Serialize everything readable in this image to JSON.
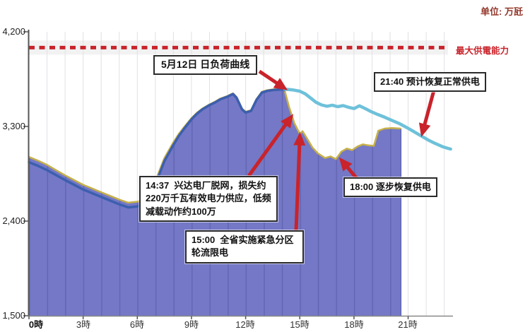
{
  "unit_label": "单位: 万瓩",
  "colors": {
    "area_fill": "#7478c6",
    "area_stripe": "#6367b3",
    "area_edge": "#c6b14a",
    "actual_line": "#3c5fae",
    "projected_line": "#6ec1da",
    "alert_red": "#c9232b",
    "axis": "#555555",
    "grid": "#e1e1e6"
  },
  "chart_data": {
    "type": "area",
    "unit": "万瓩",
    "x_axis": {
      "ticks": [
        {
          "label": "0時",
          "hour": 0,
          "bold": true
        },
        {
          "label": "3時",
          "hour": 3
        },
        {
          "label": "6時",
          "hour": 6
        },
        {
          "label": "9時",
          "hour": 9
        },
        {
          "label": "12時",
          "hour": 12
        },
        {
          "label": "15時",
          "hour": 15
        },
        {
          "label": "18時",
          "hour": 18
        },
        {
          "label": "21時",
          "hour": 21
        }
      ]
    },
    "y_axis": {
      "min": 1500,
      "max": 4200,
      "ticks": [
        {
          "label": "4,200",
          "value": 4200
        },
        {
          "label": "3,300",
          "value": 3300
        },
        {
          "label": "2,400",
          "value": 2400
        },
        {
          "label": "1,500",
          "value": 1500
        }
      ]
    },
    "max_supply_capacity": {
      "value": 4050,
      "label": "最大供電能力"
    },
    "series": [
      {
        "name": "supplied-load-area",
        "type": "area",
        "points": [
          [
            0,
            3010
          ],
          [
            0.5,
            2975
          ],
          [
            1,
            2935
          ],
          [
            1.5,
            2885
          ],
          [
            2,
            2835
          ],
          [
            2.5,
            2790
          ],
          [
            3,
            2745
          ],
          [
            3.5,
            2710
          ],
          [
            4,
            2675
          ],
          [
            4.5,
            2640
          ],
          [
            5,
            2605
          ],
          [
            5.5,
            2575
          ],
          [
            6,
            2585
          ],
          [
            6.4,
            2605
          ],
          [
            6.7,
            2650
          ],
          [
            7,
            2780
          ],
          [
            7.5,
            3000
          ],
          [
            8,
            3150
          ],
          [
            8.3,
            3230
          ],
          [
            8.6,
            3295
          ],
          [
            9,
            3380
          ],
          [
            9.3,
            3430
          ],
          [
            9.6,
            3470
          ],
          [
            10,
            3510
          ],
          [
            10.3,
            3535
          ],
          [
            10.6,
            3565
          ],
          [
            11,
            3590
          ],
          [
            11.3,
            3615
          ],
          [
            11.5,
            3580
          ],
          [
            11.8,
            3470
          ],
          [
            12,
            3440
          ],
          [
            12.3,
            3455
          ],
          [
            12.6,
            3560
          ],
          [
            12.9,
            3630
          ],
          [
            13.2,
            3645
          ],
          [
            13.6,
            3655
          ],
          [
            14,
            3660
          ],
          [
            14.15,
            3650
          ],
          [
            14.4,
            3490
          ],
          [
            14.7,
            3330
          ],
          [
            15,
            3230
          ],
          [
            15.15,
            3255
          ],
          [
            15.35,
            3200
          ],
          [
            15.7,
            3100
          ],
          [
            16,
            3045
          ],
          [
            16.4,
            3000
          ],
          [
            16.7,
            3015
          ],
          [
            17,
            2990
          ],
          [
            17.3,
            3060
          ],
          [
            17.6,
            3090
          ],
          [
            17.9,
            3075
          ],
          [
            18.2,
            3110
          ],
          [
            18.5,
            3130
          ],
          [
            18.8,
            3120
          ],
          [
            19.1,
            3115
          ],
          [
            19.35,
            3260
          ],
          [
            19.7,
            3280
          ],
          [
            20.1,
            3285
          ],
          [
            20.6,
            3280
          ]
        ]
      },
      {
        "name": "actual-load-line",
        "type": "line",
        "points": [
          [
            0,
            2960
          ],
          [
            0.5,
            2925
          ],
          [
            1,
            2885
          ],
          [
            1.5,
            2838
          ],
          [
            2,
            2790
          ],
          [
            2.5,
            2745
          ],
          [
            3,
            2700
          ],
          [
            3.5,
            2665
          ],
          [
            4,
            2630
          ],
          [
            4.5,
            2595
          ],
          [
            5,
            2560
          ],
          [
            5.5,
            2530
          ],
          [
            6,
            2540
          ],
          [
            6.4,
            2560
          ],
          [
            6.7,
            2610
          ],
          [
            7,
            2745
          ],
          [
            7.5,
            2970
          ],
          [
            8,
            3125
          ],
          [
            8.3,
            3210
          ],
          [
            8.6,
            3280
          ],
          [
            9,
            3368
          ],
          [
            9.3,
            3420
          ],
          [
            9.6,
            3462
          ],
          [
            10,
            3503
          ],
          [
            10.3,
            3528
          ],
          [
            10.6,
            3558
          ],
          [
            11,
            3584
          ],
          [
            11.3,
            3608
          ],
          [
            11.5,
            3572
          ],
          [
            11.8,
            3462
          ],
          [
            12,
            3432
          ],
          [
            12.3,
            3448
          ],
          [
            12.6,
            3552
          ],
          [
            12.9,
            3622
          ],
          [
            13.2,
            3638
          ],
          [
            13.6,
            3648
          ],
          [
            14,
            3652
          ],
          [
            14.15,
            3645
          ]
        ]
      },
      {
        "name": "projected-load-line",
        "type": "line",
        "points": [
          [
            14.15,
            3655
          ],
          [
            14.6,
            3648
          ],
          [
            15,
            3635
          ],
          [
            15.3,
            3610
          ],
          [
            15.6,
            3570
          ],
          [
            15.9,
            3530
          ],
          [
            16.2,
            3505
          ],
          [
            16.5,
            3492
          ],
          [
            16.8,
            3502
          ],
          [
            17.1,
            3488
          ],
          [
            17.4,
            3498
          ],
          [
            17.7,
            3482
          ],
          [
            18,
            3470
          ],
          [
            18.3,
            3496
          ],
          [
            18.6,
            3472
          ],
          [
            18.9,
            3445
          ],
          [
            19.3,
            3415
          ],
          [
            19.7,
            3388
          ],
          [
            20.1,
            3358
          ],
          [
            20.5,
            3328
          ],
          [
            20.9,
            3292
          ],
          [
            21.3,
            3252
          ],
          [
            21.7,
            3212
          ],
          [
            22.1,
            3172
          ],
          [
            22.5,
            3138
          ],
          [
            22.9,
            3108
          ],
          [
            23.2,
            3092
          ],
          [
            23.35,
            3085
          ]
        ]
      }
    ],
    "annotations": [
      {
        "id": "curve-label",
        "text": "5月12日 日负荷曲线",
        "anchor_hour": 14.1,
        "anchor_value": 3670
      },
      {
        "id": "plant-trip",
        "text": "14:37  兴达电厂脱网，损失约220万千瓦有效电力供应，低频减载动作约100万",
        "anchor_hour": 14.48,
        "anchor_value": 3380
      },
      {
        "id": "rationing",
        "text": "15:00  全省实施紧急分区轮流限电",
        "anchor_hour": 15.0,
        "anchor_value": 3200
      },
      {
        "id": "restore-partial",
        "text": "18:00 逐步恢复供电",
        "anchor_hour": 17.35,
        "anchor_value": 2970
      },
      {
        "id": "restore-full",
        "text": "21:40 预计恢复正常供电",
        "anchor_hour": 21.8,
        "anchor_value": 3245
      }
    ]
  }
}
